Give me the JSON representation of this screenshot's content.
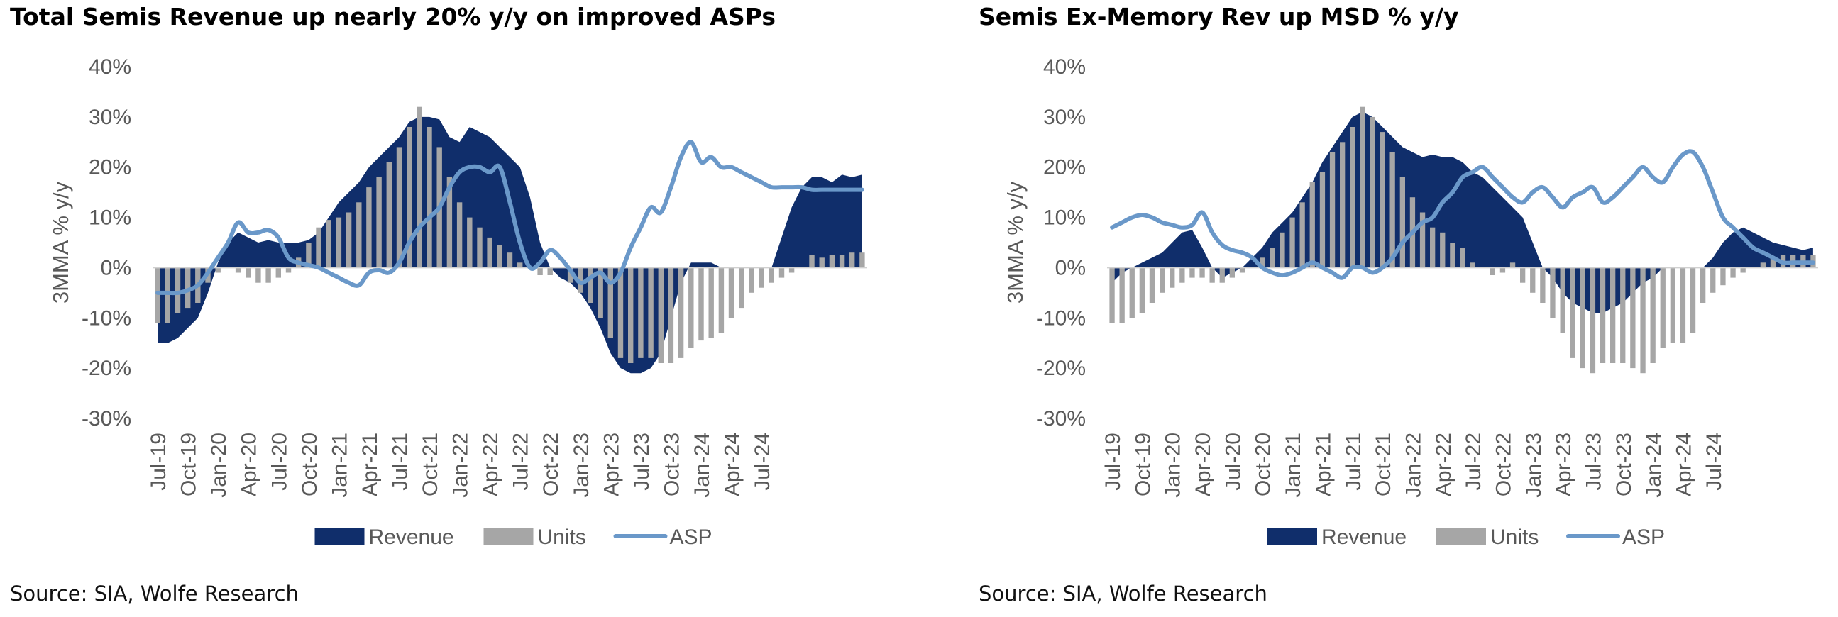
{
  "source": "Source: SIA, Wolfe Research",
  "chart_data": [
    {
      "type": "bar",
      "title": "Total Semis Revenue up nearly 20% y/y on improved ASPs",
      "xlabel": "",
      "ylabel": "3MMA % y/y",
      "ylim": [
        -30,
        40
      ],
      "yticks": [
        -30,
        -20,
        -10,
        0,
        10,
        20,
        30,
        40
      ],
      "ytick_format": "percent",
      "x_start": "Jul-19",
      "x_ticks": [
        "Jul-19",
        "Oct-19",
        "Jan-20",
        "Apr-20",
        "Jul-20",
        "Oct-20",
        "Jan-21",
        "Apr-21",
        "Jul-21",
        "Oct-21",
        "Jan-22",
        "Apr-22",
        "Jul-22",
        "Oct-22",
        "Jan-23",
        "Apr-23",
        "Jul-23",
        "Oct-23",
        "Jan-24",
        "Apr-24",
        "Jul-24"
      ],
      "legend_position": "bottom",
      "series": [
        {
          "name": "Revenue",
          "kind": "area",
          "color": "#102E6B",
          "values": [
            -15,
            -15,
            -14,
            -12,
            -10,
            -5,
            1,
            5,
            7,
            6,
            5,
            5.5,
            5,
            5,
            5,
            5.5,
            7,
            10,
            13,
            15,
            17,
            20,
            22,
            24,
            26,
            29,
            30,
            30,
            29.5,
            26,
            25,
            28,
            27,
            26,
            24,
            22,
            20,
            14,
            5,
            0,
            -2,
            -3,
            -5,
            -8,
            -12,
            -17,
            -20,
            -21,
            -21,
            -20,
            -17,
            -10,
            -3,
            1,
            1,
            1,
            0,
            0,
            0,
            0,
            0,
            0,
            6,
            12,
            16,
            18,
            18,
            17,
            18.5,
            18,
            18.5
          ]
        },
        {
          "name": "Units",
          "kind": "bar",
          "color": "#A6A6A6",
          "values": [
            -11,
            -11,
            -9,
            -8,
            -7,
            -3,
            -1,
            0,
            -1,
            -2,
            -3,
            -3,
            -2,
            -1,
            2,
            5,
            8,
            9.5,
            10,
            11,
            13,
            16,
            18,
            21,
            24,
            28,
            32,
            28,
            24,
            18,
            13,
            10,
            8,
            6,
            4.5,
            3,
            1,
            0,
            -1.5,
            -1.5,
            0,
            -3,
            -5,
            -7,
            -10,
            -14,
            -18,
            -19,
            -18,
            -18,
            -19,
            -19,
            -18,
            -16,
            -14.5,
            -14,
            -13,
            -10,
            -8,
            -5,
            -4,
            -3,
            -2,
            -1,
            0,
            2.5,
            2,
            2.5,
            2.5,
            3,
            3
          ]
        },
        {
          "name": "ASP",
          "kind": "line",
          "color": "#6A98C9",
          "values": [
            -5,
            -5,
            -5,
            -4.5,
            -3.5,
            -1,
            2,
            5,
            9,
            7,
            7,
            7.5,
            6,
            2,
            1,
            0.5,
            0,
            -1,
            -2,
            -3,
            -3.5,
            -1,
            -0.5,
            -1,
            1,
            5,
            8,
            10,
            12,
            16,
            19,
            20,
            20,
            19,
            20,
            13,
            5,
            0,
            1,
            3.5,
            2,
            -0.5,
            -3,
            -2,
            -1,
            -3,
            -1,
            4,
            8,
            12,
            11,
            16,
            22,
            25,
            21,
            22,
            20,
            20,
            19,
            18,
            17,
            16,
            16,
            16,
            16,
            15.5,
            15.5,
            15.5,
            15.5,
            15.5,
            15.5
          ]
        }
      ]
    },
    {
      "type": "bar",
      "title": "Semis Ex-Memory Rev up MSD % y/y",
      "xlabel": "",
      "ylabel": "3MMA % y/y",
      "ylim": [
        -30,
        40
      ],
      "yticks": [
        -30,
        -20,
        -10,
        0,
        10,
        20,
        30,
        40
      ],
      "ytick_format": "percent",
      "x_start": "Jul-19",
      "x_ticks": [
        "Jul-19",
        "Oct-19",
        "Jan-20",
        "Apr-20",
        "Jul-20",
        "Oct-20",
        "Jan-21",
        "Apr-21",
        "Jul-21",
        "Oct-21",
        "Jan-22",
        "Apr-22",
        "Jul-22",
        "Oct-22",
        "Jan-23",
        "Apr-23",
        "Jul-23",
        "Oct-23",
        "Jan-24",
        "Apr-24",
        "Jul-24"
      ],
      "legend_position": "bottom",
      "series": [
        {
          "name": "Revenue",
          "kind": "area",
          "color": "#102E6B",
          "values": [
            -3,
            -1,
            0,
            1,
            2,
            3,
            5,
            7,
            7.5,
            4,
            0,
            -2,
            -1,
            0,
            2,
            4,
            7,
            9,
            11,
            14,
            17,
            21,
            24,
            27,
            30,
            31,
            30,
            28,
            26,
            24,
            23,
            22,
            22.5,
            22,
            22,
            21,
            19,
            18,
            16,
            14,
            12,
            10,
            5,
            0,
            -2,
            -5,
            -7,
            -8,
            -9,
            -9,
            -8,
            -7,
            -5,
            -3,
            -2,
            0,
            0,
            0,
            0,
            0,
            2,
            5,
            7,
            8,
            7,
            6,
            5,
            4.5,
            4,
            3.5,
            4
          ]
        },
        {
          "name": "Units",
          "kind": "bar",
          "color": "#A6A6A6",
          "values": [
            -11,
            -11,
            -10,
            -9,
            -7,
            -5,
            -4,
            -3,
            -2,
            -2,
            -3,
            -3,
            -2,
            -1,
            0,
            2,
            4,
            7,
            10,
            13,
            17,
            19,
            23,
            25,
            28,
            32,
            30,
            27,
            23,
            18,
            14,
            11,
            8,
            7,
            5,
            4,
            1,
            0,
            -1.5,
            -1,
            1,
            -3,
            -5,
            -7,
            -10,
            -13,
            -18,
            -20,
            -21,
            -19,
            -19,
            -19,
            -20,
            -21,
            -19,
            -16,
            -15,
            -15,
            -13,
            -7,
            -5,
            -3.5,
            -2,
            -1,
            0,
            1,
            2,
            2.5,
            2.5,
            2.5,
            2.5
          ]
        },
        {
          "name": "ASP",
          "kind": "line",
          "color": "#6A98C9",
          "values": [
            8,
            9,
            10,
            10.5,
            10,
            9,
            8.5,
            8,
            8.5,
            11,
            7,
            4.5,
            3.5,
            3,
            2,
            0,
            -1,
            -1.5,
            -1,
            0,
            1,
            0,
            -1,
            -2,
            0,
            0,
            -1,
            0,
            2,
            5,
            7,
            9,
            10,
            13,
            15,
            18,
            19,
            20,
            18,
            16,
            14,
            13,
            15,
            16,
            14,
            12,
            14,
            15,
            16,
            13,
            14,
            16,
            18,
            20,
            18,
            17,
            20,
            22.5,
            23,
            20,
            15,
            10,
            8,
            6,
            4,
            3,
            2,
            1,
            1,
            1,
            1
          ]
        }
      ]
    }
  ]
}
